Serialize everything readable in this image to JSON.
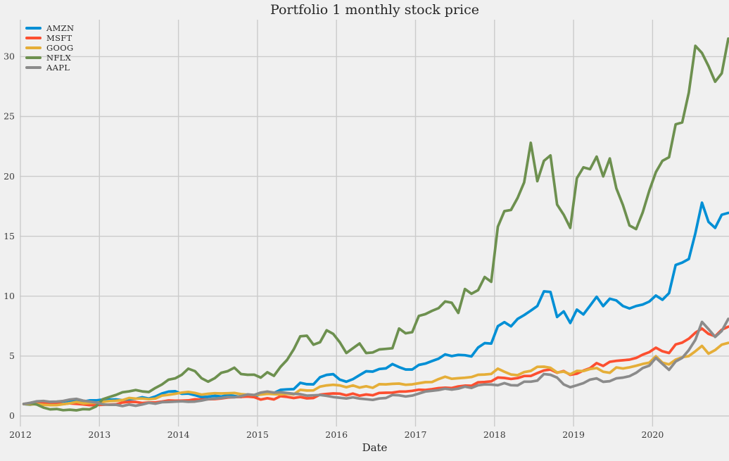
{
  "figure": {
    "background": "#f0f0f0",
    "grid_color": "#cbcbcb",
    "text_color": "#3b3b3b"
  },
  "chart_data": {
    "type": "line",
    "title": "Portfolio 1 monthly stock price",
    "xlabel": "Date",
    "ylabel": "",
    "grid": true,
    "legend_position": "upper left",
    "x_ticks": [
      2012,
      2013,
      2014,
      2015,
      2016,
      2017,
      2018,
      2019,
      2020
    ],
    "y_ticks": [
      0,
      5,
      10,
      15,
      20,
      25,
      30
    ],
    "xlim": [
      2012.0,
      2020.97
    ],
    "ylim": [
      -0.9,
      33.1
    ],
    "x_unit": "monthly, Jan 2012 - Dec 2020, prices normalized to 1.0 at start",
    "series": [
      {
        "name": "AMZN",
        "color": "#008fd5",
        "values": [
          1.0,
          0.93,
          1.05,
          1.2,
          1.09,
          1.18,
          1.21,
          1.28,
          1.31,
          1.2,
          1.3,
          1.3,
          1.37,
          1.36,
          1.38,
          1.31,
          1.39,
          1.44,
          1.56,
          1.45,
          1.62,
          1.88,
          2.03,
          2.06,
          1.85,
          1.87,
          1.74,
          1.57,
          1.61,
          1.68,
          1.62,
          1.75,
          1.67,
          1.58,
          1.75,
          1.6,
          1.83,
          1.96,
          1.92,
          2.18,
          2.22,
          2.24,
          2.77,
          2.65,
          2.64,
          3.23,
          3.43,
          3.49,
          3.03,
          2.86,
          3.07,
          3.41,
          3.73,
          3.7,
          3.92,
          3.97,
          4.33,
          4.08,
          3.88,
          3.88,
          4.26,
          4.37,
          4.58,
          4.78,
          5.14,
          5.0,
          5.1,
          5.07,
          4.97,
          5.71,
          6.08,
          6.04,
          7.49,
          7.83,
          7.48,
          8.1,
          8.42,
          8.79,
          9.18,
          10.4,
          10.35,
          8.26,
          8.73,
          7.76,
          8.88,
          8.47,
          9.2,
          9.95,
          9.17,
          9.79,
          9.64,
          9.18,
          8.97,
          9.18,
          9.3,
          9.55,
          10.05,
          9.7,
          10.25,
          12.6,
          12.8,
          13.1,
          15.25,
          17.8,
          16.2,
          15.7,
          16.8,
          16.95
        ]
      },
      {
        "name": "MSFT",
        "color": "#fc4f30",
        "values": [
          1.0,
          1.07,
          1.09,
          1.08,
          0.99,
          1.03,
          0.99,
          1.05,
          1.01,
          0.97,
          0.9,
          0.91,
          0.93,
          0.95,
          0.97,
          1.12,
          1.18,
          1.17,
          1.08,
          1.13,
          1.13,
          1.2,
          1.29,
          1.27,
          1.28,
          1.3,
          1.39,
          1.37,
          1.39,
          1.41,
          1.46,
          1.54,
          1.57,
          1.59,
          1.62,
          1.57,
          1.37,
          1.48,
          1.38,
          1.65,
          1.59,
          1.5,
          1.58,
          1.47,
          1.5,
          1.78,
          1.84,
          1.88,
          1.86,
          1.72,
          1.87,
          1.69,
          1.79,
          1.73,
          1.92,
          1.94,
          1.95,
          2.03,
          2.04,
          2.1,
          2.19,
          2.17,
          2.23,
          2.32,
          2.36,
          2.33,
          2.46,
          2.53,
          2.52,
          2.81,
          2.84,
          2.89,
          3.21,
          3.17,
          3.09,
          3.16,
          3.34,
          3.34,
          3.58,
          3.8,
          3.87,
          3.61,
          3.75,
          3.43,
          3.53,
          3.79,
          3.99,
          4.41,
          4.18,
          4.52,
          4.6,
          4.65,
          4.7,
          4.84,
          5.12,
          5.33,
          5.7,
          5.4,
          5.25,
          5.97,
          6.12,
          6.45,
          6.95,
          7.3,
          6.85,
          6.65,
          7.2,
          7.45
        ]
      },
      {
        "name": "GOOG",
        "color": "#e5ae38",
        "values": [
          1.0,
          0.96,
          0.99,
          0.93,
          0.9,
          0.9,
          0.98,
          1.06,
          1.17,
          1.05,
          1.08,
          1.1,
          1.18,
          1.24,
          1.27,
          1.32,
          1.5,
          1.45,
          1.46,
          1.4,
          1.45,
          1.7,
          1.77,
          1.85,
          1.95,
          2.01,
          1.92,
          1.78,
          1.85,
          1.9,
          1.88,
          1.9,
          1.92,
          1.82,
          1.78,
          1.75,
          1.78,
          1.85,
          1.82,
          1.8,
          1.85,
          1.8,
          2.18,
          2.12,
          2.13,
          2.45,
          2.55,
          2.6,
          2.55,
          2.4,
          2.55,
          2.37,
          2.48,
          2.35,
          2.65,
          2.64,
          2.68,
          2.7,
          2.6,
          2.64,
          2.73,
          2.82,
          2.83,
          3.08,
          3.28,
          3.1,
          3.15,
          3.19,
          3.25,
          3.44,
          3.46,
          3.51,
          3.95,
          3.69,
          3.46,
          3.4,
          3.66,
          3.76,
          4.1,
          4.11,
          4.02,
          3.63,
          3.7,
          3.48,
          3.76,
          3.75,
          3.92,
          4.0,
          3.69,
          3.6,
          4.05,
          3.96,
          4.06,
          4.19,
          4.34,
          4.45,
          4.98,
          4.45,
          4.3,
          4.7,
          4.9,
          5.0,
          5.4,
          5.85,
          5.2,
          5.5,
          5.95,
          6.1
        ]
      },
      {
        "name": "NFLX",
        "color": "#6d904f",
        "values": [
          1.0,
          1.05,
          0.95,
          0.7,
          0.55,
          0.58,
          0.48,
          0.52,
          0.47,
          0.57,
          0.55,
          0.8,
          1.4,
          1.58,
          1.75,
          1.98,
          2.05,
          2.16,
          2.05,
          2.0,
          2.34,
          2.63,
          3.03,
          3.14,
          3.44,
          3.95,
          3.74,
          3.15,
          2.86,
          3.15,
          3.6,
          3.74,
          4.03,
          3.5,
          3.44,
          3.45,
          3.2,
          3.65,
          3.35,
          4.1,
          4.68,
          5.56,
          6.65,
          6.7,
          5.95,
          6.15,
          7.15,
          6.85,
          6.15,
          5.25,
          5.65,
          6.05,
          5.25,
          5.3,
          5.55,
          5.6,
          5.65,
          7.3,
          6.9,
          7.0,
          8.35,
          8.5,
          8.77,
          9.0,
          9.56,
          9.45,
          8.6,
          10.6,
          10.2,
          10.5,
          11.6,
          11.2,
          15.8,
          17.1,
          17.2,
          18.2,
          19.5,
          22.8,
          19.6,
          21.3,
          21.75,
          17.65,
          16.8,
          15.7,
          19.85,
          20.75,
          20.6,
          21.65,
          20.0,
          21.5,
          19.0,
          17.6,
          15.9,
          15.6,
          17.0,
          18.8,
          20.35,
          21.3,
          21.6,
          24.35,
          24.5,
          27.0,
          30.9,
          30.3,
          29.2,
          27.9,
          28.6,
          31.5
        ]
      },
      {
        "name": "AAPL",
        "color": "#8b8b8b",
        "values": [
          1.0,
          1.1,
          1.22,
          1.25,
          1.18,
          1.2,
          1.25,
          1.37,
          1.43,
          1.28,
          1.2,
          1.12,
          0.97,
          0.93,
          0.94,
          0.83,
          0.95,
          0.85,
          0.96,
          1.1,
          1.02,
          1.15,
          1.17,
          1.19,
          1.22,
          1.18,
          1.2,
          1.28,
          1.4,
          1.45,
          1.5,
          1.58,
          1.56,
          1.65,
          1.8,
          1.75,
          1.95,
          2.04,
          1.95,
          1.98,
          1.92,
          1.85,
          1.82,
          1.7,
          1.72,
          1.75,
          1.68,
          1.58,
          1.52,
          1.46,
          1.55,
          1.45,
          1.4,
          1.34,
          1.46,
          1.5,
          1.75,
          1.72,
          1.63,
          1.7,
          1.87,
          2.04,
          2.1,
          2.16,
          2.28,
          2.2,
          2.28,
          2.45,
          2.34,
          2.56,
          2.63,
          2.62,
          2.56,
          2.74,
          2.57,
          2.55,
          2.86,
          2.86,
          2.95,
          3.5,
          3.44,
          3.2,
          2.63,
          2.4,
          2.56,
          2.74,
          3.03,
          3.14,
          2.85,
          2.9,
          3.14,
          3.2,
          3.32,
          3.6,
          4.0,
          4.2,
          4.85,
          4.35,
          3.85,
          4.55,
          4.85,
          5.5,
          6.35,
          7.85,
          7.25,
          6.6,
          7.1,
          8.1
        ]
      }
    ]
  }
}
